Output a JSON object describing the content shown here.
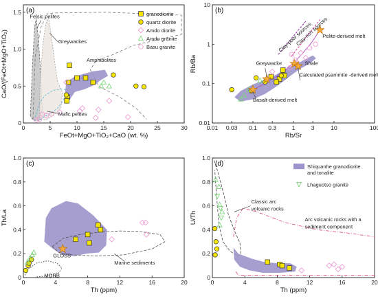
{
  "colors": {
    "field_purple": "#9b93c9",
    "yellow": "#f5e400",
    "pink": "#ee9fd6",
    "green": "#7fd67f",
    "orange": "#f6a93b",
    "grey_fill": "#b9b9b9"
  },
  "chart_data": [
    {
      "type": "scatter",
      "panel": "(a)",
      "xlabel": "FeOt+MgO+TiO₂+CaO (wt. %)",
      "ylabel": "CaO/(FeOt+MgO+TiO₂)",
      "xlim": [
        0,
        30
      ],
      "ylim": [
        0,
        1.6
      ],
      "xticks": [
        0,
        5,
        10,
        15,
        20,
        25,
        30
      ],
      "yticks": [
        0,
        0.5,
        1.0,
        1.5
      ],
      "xtick_labels": [
        "0",
        "5",
        "10",
        "15",
        "20",
        "25",
        "30"
      ],
      "ytick_labels": [
        "0",
        "0.5",
        "1.0",
        "1.5"
      ],
      "legend": [
        "granodiorite",
        "quartz diorite",
        "Amdo diorite",
        "Amdo granite",
        "Basu granite"
      ],
      "legend_position": "top-right",
      "annotations": [
        "Felsic pelites",
        "Greywackes",
        "Amphibolites",
        "Mafic pelites"
      ],
      "series": [
        {
          "name": "granodiorite",
          "points": [
            [
              8.6,
              0.78
            ],
            [
              8.4,
              0.55
            ],
            [
              11.6,
              0.61
            ],
            [
              8.2,
              0.35
            ],
            [
              8.1,
              0.3
            ],
            [
              13.0,
              0.55
            ],
            [
              10.0,
              0.61
            ]
          ]
        },
        {
          "name": "quartz diorite",
          "points": [
            [
              21.0,
              0.5
            ],
            [
              22.5,
              0.49
            ],
            [
              16.8,
              0.65
            ],
            [
              8.0,
              0.38
            ]
          ]
        },
        {
          "name": "Amdo diorite",
          "points": [
            [
              8.0,
              0.55
            ],
            [
              11.0,
              0.2
            ],
            [
              14.0,
              0.18
            ],
            [
              16.0,
              0.3
            ],
            [
              19.5,
              0.08
            ],
            [
              13.5,
              0.07
            ],
            [
              10.5,
              0.16
            ]
          ]
        },
        {
          "name": "Amdo granite",
          "points": [
            [
              15.0,
              0.55
            ],
            [
              16.0,
              0.5
            ],
            [
              14.5,
              0.5
            ]
          ]
        },
        {
          "name": "Basu granite",
          "points": [
            [
              3.5,
              0.12
            ],
            [
              4.3,
              0.1
            ],
            [
              5.3,
              0.12
            ],
            [
              6.8,
              0.14
            ],
            [
              3.0,
              0.05
            ],
            [
              2.4,
              0.04
            ]
          ]
        }
      ]
    },
    {
      "type": "scatter",
      "panel": "(b)",
      "xlabel": "Rb/Sr",
      "ylabel": "Rb/Ba",
      "xscale": "log",
      "yscale": "log",
      "xlim": [
        0.01,
        100
      ],
      "ylim": [
        0.01,
        10
      ],
      "xticks": [
        0.01,
        0.03,
        0.1,
        0.3,
        1,
        3,
        10,
        100
      ],
      "yticks": [
        0.01,
        0.1,
        1,
        10
      ],
      "xtick_labels": [
        "0.01",
        "0.03",
        "0.1",
        "0.3",
        "1",
        "3",
        "10",
        "100"
      ],
      "ytick_labels": [
        "0.01",
        "0.1",
        "1",
        "10"
      ],
      "annotations": [
        "Clay-poor sources",
        "Clay-rich sources",
        "Pelite-derived melt",
        "Greywacke",
        "Shale",
        "Calculated psammite -derived melt",
        "Basalt-derived melt"
      ],
      "reference_stars": [
        {
          "label": "Pelite-derived melt",
          "point": [
            4.5,
            2.3
          ]
        },
        {
          "label": "Shale",
          "point": [
            1.05,
            0.32
          ]
        },
        {
          "label": "Calculated psammite -derived melt",
          "point": [
            1.3,
            0.28
          ]
        },
        {
          "label": "Greywacke",
          "point": [
            0.22,
            0.13
          ]
        },
        {
          "label": "Basalt-derived melt",
          "point": [
            0.1,
            0.07
          ]
        }
      ],
      "series": [
        {
          "name": "granodiorite",
          "points": [
            [
              0.28,
              0.15
            ],
            [
              0.45,
              0.13
            ],
            [
              0.6,
              0.16
            ],
            [
              0.55,
              0.22
            ],
            [
              0.38,
              0.11
            ]
          ]
        },
        {
          "name": "quartz diorite",
          "points": [
            [
              0.03,
              0.07
            ],
            [
              0.12,
              0.14
            ],
            [
              0.2,
              0.11
            ],
            [
              0.5,
              0.16
            ],
            [
              0.09,
              0.065
            ]
          ]
        },
        {
          "name": "Amdo diorite",
          "points": [
            [
              0.3,
              0.2
            ],
            [
              0.8,
              0.25
            ],
            [
              1.2,
              0.35
            ],
            [
              2.0,
              0.45
            ],
            [
              1.5,
              0.6
            ]
          ]
        },
        {
          "name": "Amdo granite",
          "points": [
            [
              0.05,
              0.04
            ],
            [
              0.06,
              0.05
            ],
            [
              0.08,
              0.07
            ],
            [
              0.15,
              0.12
            ]
          ]
        },
        {
          "name": "Basu granite",
          "points": [
            [
              1.1,
              0.4
            ],
            [
              2.5,
              0.8
            ],
            [
              3.5,
              1.0
            ],
            [
              0.9,
              0.55
            ]
          ]
        }
      ]
    },
    {
      "type": "scatter",
      "panel": "(c)",
      "xlabel": "Th (ppm)",
      "ylabel": "Th/La",
      "xlim": [
        0,
        20
      ],
      "ylim": [
        0,
        1.0
      ],
      "xticks": [
        0,
        4,
        8,
        12,
        16,
        20
      ],
      "yticks": [
        0,
        0.2,
        0.4,
        0.6,
        0.8,
        1.0
      ],
      "xtick_labels": [
        "0",
        "4",
        "8",
        "12",
        "16",
        "20"
      ],
      "ytick_labels": [
        "0",
        "0.2",
        "0.4",
        "0.6",
        "0.8",
        "1.0"
      ],
      "annotations": [
        "GLOSS",
        "Marine sediments",
        "MORB"
      ],
      "reference_stars": [
        {
          "label": "GLOSS",
          "point": [
            4.9,
            0.24
          ]
        }
      ],
      "series": [
        {
          "name": "granodiorite",
          "points": [
            [
              6.5,
              0.32
            ],
            [
              8.0,
              0.36
            ],
            [
              8.2,
              0.29
            ],
            [
              9.3,
              0.44
            ],
            [
              9.6,
              0.4
            ]
          ]
        },
        {
          "name": "quartz diorite",
          "points": [
            [
              0.3,
              0.06
            ],
            [
              0.6,
              0.1
            ],
            [
              1.0,
              0.15
            ],
            [
              0.7,
              0.12
            ]
          ]
        },
        {
          "name": "Amdo diorite",
          "points": [
            [
              11.0,
              0.32
            ],
            [
              14.8,
              0.46
            ],
            [
              15.3,
              0.36
            ],
            [
              15.2,
              0.46
            ]
          ]
        },
        {
          "name": "Amdo granite",
          "points": [
            [
              0.8,
              0.16
            ],
            [
              1.1,
              0.19
            ],
            [
              1.3,
              0.21
            ],
            [
              0.5,
              0.13
            ]
          ]
        }
      ]
    },
    {
      "type": "scatter",
      "panel": "(d)",
      "xlabel": "Th (ppm)",
      "ylabel": "U/Th",
      "xlim": [
        0,
        20
      ],
      "ylim": [
        0,
        1.0
      ],
      "xticks": [
        0,
        4,
        8,
        12,
        16,
        20
      ],
      "yticks": [
        0,
        0.2,
        0.4,
        0.6,
        0.8,
        1.0
      ],
      "xtick_labels": [
        "0",
        "4",
        "8",
        "12",
        "16",
        "20"
      ],
      "ytick_labels": [
        "0",
        "0.2",
        "0.4",
        "0.6",
        "0.8",
        "1.0"
      ],
      "legend": [
        "Shiquanhe granodiorite and tonalite",
        "Lhaguotso granite"
      ],
      "legend_position": "top-right",
      "annotations": [
        "Classic arc volcanic rocks",
        "Arc volcanic rocks with a sediment component"
      ],
      "series": [
        {
          "name": "granodiorite",
          "points": [
            [
              6.8,
              0.13
            ],
            [
              8.3,
              0.11
            ],
            [
              8.6,
              0.1
            ],
            [
              9.5,
              0.08
            ]
          ]
        },
        {
          "name": "quartz diorite",
          "points": [
            [
              0.3,
              0.41
            ],
            [
              0.45,
              0.3
            ],
            [
              0.55,
              0.24
            ],
            [
              0.35,
              0.19
            ]
          ]
        },
        {
          "name": "Amdo diorite",
          "points": [
            [
              14.4,
              0.1
            ],
            [
              15.0,
              0.11
            ],
            [
              16.0,
              0.09
            ],
            [
              15.5,
              0.07
            ],
            [
              11.0,
              0.06
            ]
          ]
        },
        {
          "name": "Amdo granite",
          "points": [
            [
              0.4,
              0.82
            ],
            [
              0.8,
              0.76
            ],
            [
              0.9,
              0.61
            ],
            [
              1.2,
              0.55
            ],
            [
              0.9,
              0.44
            ]
          ]
        },
        {
          "name": "Lhaguotso granite",
          "points": [
            [
              0.6,
              0.68
            ],
            [
              1.0,
              0.58
            ],
            [
              1.1,
              0.5
            ]
          ]
        }
      ]
    }
  ]
}
